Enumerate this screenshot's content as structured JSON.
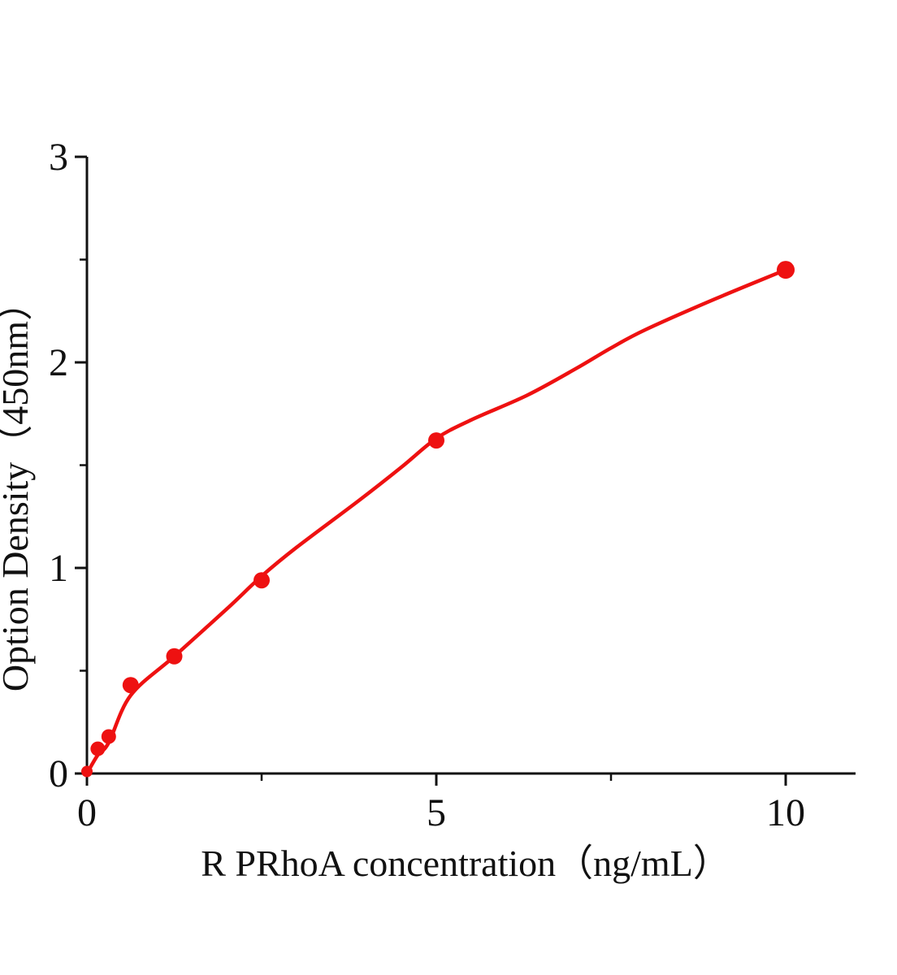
{
  "figure": {
    "background_color": "#ffffff",
    "axis_color": "#111111",
    "accent_color": "#ee1111"
  },
  "chart_data": {
    "type": "scatter",
    "title": "",
    "xlabel": "R PRhoA concentration（ng/mL）",
    "ylabel": "Option Density（450nm）",
    "xlim": [
      0,
      11
    ],
    "ylim": [
      0,
      3
    ],
    "grid": false,
    "legend_position": "none",
    "x_axis": {
      "major_ticks": [
        0,
        5,
        10
      ],
      "major_tick_labels": [
        "0",
        "5",
        "10"
      ],
      "minor_ticks": [
        2.5,
        7.5
      ]
    },
    "y_axis": {
      "major_ticks": [
        0,
        1,
        2,
        3
      ],
      "major_tick_labels": [
        "0",
        "1",
        "2",
        "3"
      ],
      "minor_ticks": [
        0.5,
        1.5,
        2.5
      ]
    },
    "series": [
      {
        "name": "standard-points",
        "type": "scatter",
        "color": "#ee1111",
        "points": [
          {
            "x": 0,
            "y": 0.01,
            "r": 7
          },
          {
            "x": 0.156,
            "y": 0.12,
            "r": 9
          },
          {
            "x": 0.312,
            "y": 0.18,
            "r": 9
          },
          {
            "x": 0.625,
            "y": 0.43,
            "r": 10
          },
          {
            "x": 1.25,
            "y": 0.57,
            "r": 10
          },
          {
            "x": 2.5,
            "y": 0.94,
            "r": 10
          },
          {
            "x": 5,
            "y": 1.62,
            "r": 10
          },
          {
            "x": 10,
            "y": 2.45,
            "r": 11
          }
        ]
      },
      {
        "name": "fit-curve",
        "type": "line",
        "color": "#ee1111",
        "points": [
          {
            "x": 0,
            "y": 0
          },
          {
            "x": 0.156,
            "y": 0.09
          },
          {
            "x": 0.312,
            "y": 0.15
          },
          {
            "x": 0.625,
            "y": 0.38
          },
          {
            "x": 1.25,
            "y": 0.57
          },
          {
            "x": 2.0,
            "y": 0.8
          },
          {
            "x": 2.5,
            "y": 0.96
          },
          {
            "x": 3.0,
            "y": 1.1
          },
          {
            "x": 3.9,
            "y": 1.33
          },
          {
            "x": 4.5,
            "y": 1.49
          },
          {
            "x": 5.0,
            "y": 1.63
          },
          {
            "x": 5.5,
            "y": 1.72
          },
          {
            "x": 6.3,
            "y": 1.84
          },
          {
            "x": 7.0,
            "y": 1.97
          },
          {
            "x": 7.5,
            "y": 2.07
          },
          {
            "x": 8.0,
            "y": 2.16
          },
          {
            "x": 9.0,
            "y": 2.31
          },
          {
            "x": 10.0,
            "y": 2.45
          }
        ]
      }
    ]
  }
}
